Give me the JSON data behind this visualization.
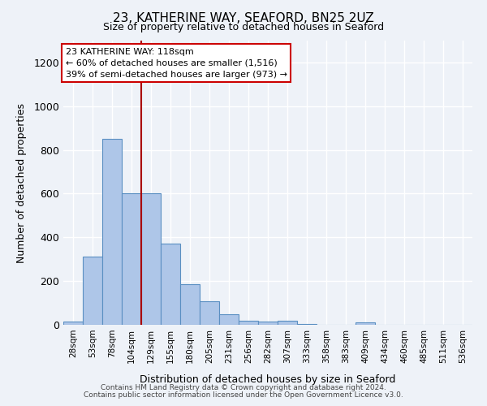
{
  "title": "23, KATHERINE WAY, SEAFORD, BN25 2UZ",
  "subtitle": "Size of property relative to detached houses in Seaford",
  "xlabel": "Distribution of detached houses by size in Seaford",
  "ylabel": "Number of detached properties",
  "footnote1": "Contains HM Land Registry data © Crown copyright and database right 2024.",
  "footnote2": "Contains public sector information licensed under the Open Government Licence v3.0.",
  "categories": [
    "28sqm",
    "53sqm",
    "78sqm",
    "104sqm",
    "129sqm",
    "155sqm",
    "180sqm",
    "205sqm",
    "231sqm",
    "256sqm",
    "282sqm",
    "307sqm",
    "333sqm",
    "358sqm",
    "383sqm",
    "409sqm",
    "434sqm",
    "460sqm",
    "485sqm",
    "511sqm",
    "536sqm"
  ],
  "values": [
    14,
    312,
    850,
    600,
    600,
    370,
    185,
    108,
    47,
    20,
    15,
    18,
    5,
    0,
    0,
    10,
    0,
    0,
    0,
    0,
    0
  ],
  "bar_color": "#aec6e8",
  "bar_edge_color": "#5a8fc2",
  "marker_index": 3,
  "marker_label": "23 KATHERINE WAY: 118sqm",
  "marker_line_color": "#aa0000",
  "annotation_text1": "← 60% of detached houses are smaller (1,516)",
  "annotation_text2": "39% of semi-detached houses are larger (973) →",
  "annotation_box_color": "#ffffff",
  "annotation_box_edge": "#cc0000",
  "ylim": [
    0,
    1300
  ],
  "yticks": [
    0,
    200,
    400,
    600,
    800,
    1000,
    1200
  ],
  "bg_color": "#eef2f8",
  "grid_color": "#ffffff"
}
